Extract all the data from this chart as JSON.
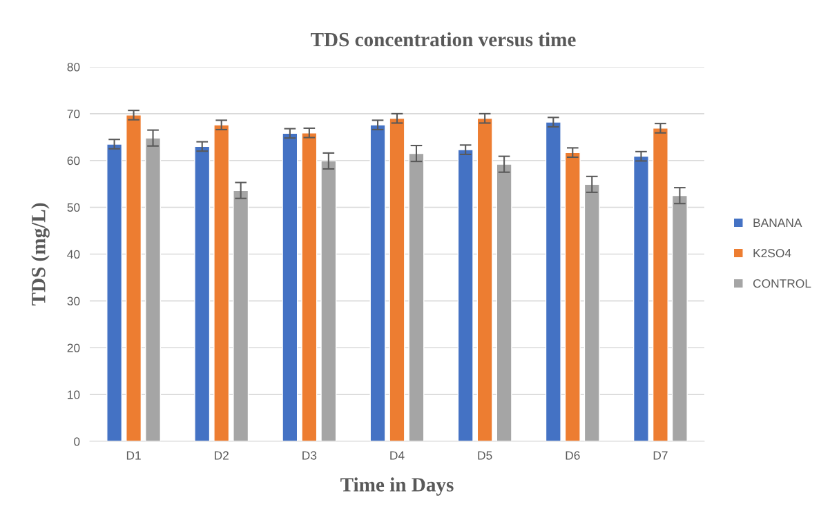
{
  "chart_data": {
    "type": "bar",
    "title": "TDS concentration versus time",
    "xlabel": "Time in Days",
    "ylabel": "TDS (mg/L)",
    "categories": [
      "D1",
      "D2",
      "D3",
      "D4",
      "D5",
      "D6",
      "D7"
    ],
    "series": [
      {
        "name": "BANANA",
        "color": "#4472c4",
        "values": [
          63.5,
          63.0,
          65.8,
          67.6,
          62.3,
          68.2,
          60.9
        ],
        "errors": [
          1,
          1,
          1,
          1,
          1,
          1,
          1
        ]
      },
      {
        "name": "K2SO4",
        "color": "#ed7d31",
        "values": [
          69.7,
          67.6,
          65.9,
          69.0,
          69.0,
          61.7,
          66.9
        ],
        "errors": [
          1,
          1,
          1,
          1,
          1,
          1,
          1
        ]
      },
      {
        "name": "CONTROL",
        "color": "#a5a5a5",
        "values": [
          64.8,
          53.6,
          59.9,
          61.5,
          59.2,
          54.9,
          52.5
        ],
        "errors": [
          1.7,
          1.7,
          1.7,
          1.7,
          1.7,
          1.7,
          1.7
        ]
      }
    ],
    "ylim": [
      0,
      80
    ],
    "yticks": [
      0,
      10,
      20,
      30,
      40,
      50,
      60,
      70,
      80
    ],
    "grid": "y",
    "legend": "right"
  }
}
